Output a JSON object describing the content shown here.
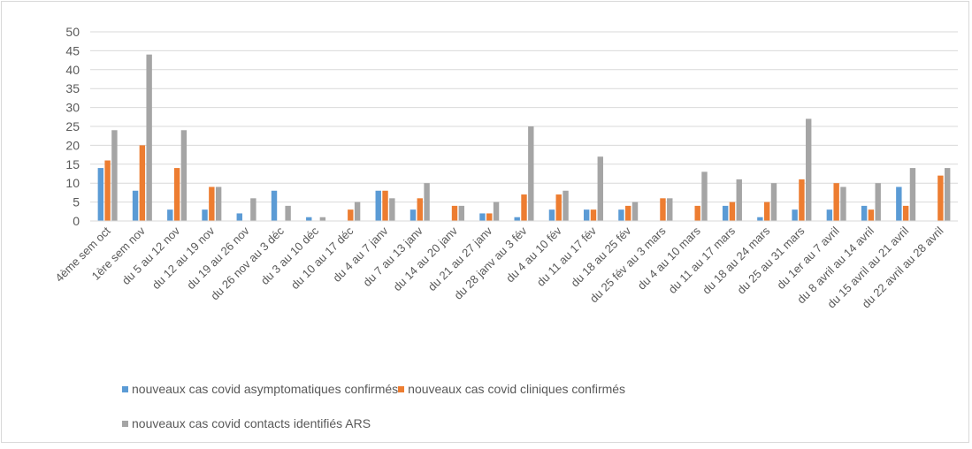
{
  "chart_data": {
    "type": "bar",
    "title": "",
    "xlabel": "",
    "ylabel": "",
    "ylim": [
      0,
      50
    ],
    "yticks": [
      0,
      5,
      10,
      15,
      20,
      25,
      30,
      35,
      40,
      45,
      50
    ],
    "grid": true,
    "legend_position": "bottom",
    "categories": [
      "4ème sem oct",
      "1ère sem nov",
      "du 5 au 12 nov",
      "du 12 au 19 nov",
      "du 19 au 26 nov",
      "du 26 nov au 3 déc",
      "du 3 au 10 déc",
      "du 10 au 17 déc",
      "du 4 au 7 janv",
      "du 7 au 13 janv",
      "du 14 au 20 janv",
      "du 21 au 27 janv",
      "du 28 janv au 3 fév",
      "du 4 au 10 fév",
      "du 11 au 17 fév",
      "du 18 au 25 fév",
      "du 25 fév au 3 mars",
      "du 4 au 10 mars",
      "du 11 au 17 mars",
      "du 18 au 24 mars",
      "du 25 au 31 mars",
      "du 1er au 7 avril",
      "du 8 avril au 14 avril",
      "du 15 avril au 21 avril",
      "du 22 avril au 28 avril"
    ],
    "series": [
      {
        "name": "nouveaux cas covid asymptomatiques confirmés",
        "color": "#5b9bd5",
        "values": [
          14,
          8,
          3,
          3,
          2,
          8,
          1,
          0,
          8,
          3,
          0,
          2,
          1,
          3,
          3,
          3,
          0,
          0,
          4,
          1,
          3,
          3,
          4,
          9,
          0
        ]
      },
      {
        "name": "nouveaux cas covid cliniques confirmés",
        "color": "#ed7d31",
        "values": [
          16,
          20,
          14,
          9,
          0,
          0,
          0,
          3,
          8,
          6,
          4,
          2,
          7,
          7,
          3,
          4,
          6,
          4,
          5,
          5,
          11,
          10,
          3,
          4,
          12
        ]
      },
      {
        "name": "nouveaux cas covid contacts identifiés ARS",
        "color": "#a5a5a5",
        "values": [
          24,
          44,
          24,
          9,
          6,
          4,
          1,
          5,
          6,
          10,
          4,
          5,
          25,
          8,
          17,
          5,
          6,
          13,
          11,
          10,
          27,
          9,
          10,
          14,
          14
        ]
      }
    ]
  }
}
